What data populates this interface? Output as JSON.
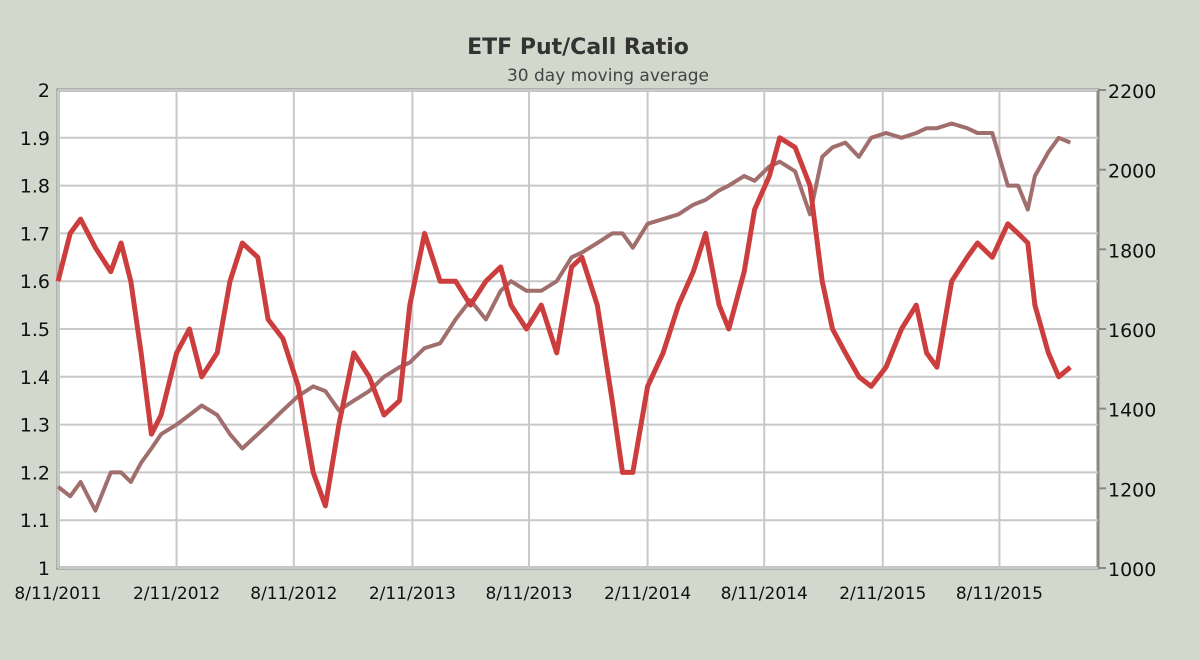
{
  "chart_data": {
    "type": "line",
    "title": "ETF Put/Call Ratio",
    "subtitle": "30 day moving  average",
    "xlabel": "",
    "ylabel": "",
    "y2label": "",
    "xlim": [
      "2011-08-11",
      "2016-01-11"
    ],
    "ylim": [
      1,
      2
    ],
    "y2lim": [
      1000,
      2200
    ],
    "grid": true,
    "legend": "none",
    "x_tick_labels": [
      "8/11/2011",
      "2/11/2012",
      "8/11/2012",
      "2/11/2013",
      "8/11/2013",
      "2/11/2014",
      "8/11/2014",
      "2/11/2015",
      "8/11/2015"
    ],
    "x_ticks": [
      "2011-08-11",
      "2012-02-11",
      "2012-08-11",
      "2013-02-11",
      "2013-08-11",
      "2014-02-11",
      "2014-08-11",
      "2015-02-11",
      "2015-08-11"
    ],
    "y_tick_labels": [
      "1",
      "1.1",
      "1.2",
      "1.3",
      "1.4",
      "1.5",
      "1.6",
      "1.7",
      "1.8",
      "1.9",
      "2"
    ],
    "y2_tick_labels": [
      "1000",
      "1200",
      "1400",
      "1600",
      "1800",
      "2000",
      "2200"
    ],
    "x": [
      "2011-08-11",
      "2011-08-30",
      "2011-09-15",
      "2011-10-08",
      "2011-11-01",
      "2011-11-17",
      "2011-12-02",
      "2011-12-18",
      "2012-01-03",
      "2012-01-18",
      "2012-02-11",
      "2012-03-02",
      "2012-03-21",
      "2012-04-14",
      "2012-05-04",
      "2012-05-23",
      "2012-06-16",
      "2012-07-02",
      "2012-07-25",
      "2012-08-18",
      "2012-09-10",
      "2012-09-29",
      "2012-10-20",
      "2012-11-12",
      "2012-12-06",
      "2012-12-29",
      "2013-01-22",
      "2013-02-07",
      "2013-03-02",
      "2013-03-26",
      "2013-04-19",
      "2013-05-12",
      "2013-06-05",
      "2013-06-28",
      "2013-07-14",
      "2013-08-07",
      "2013-08-30",
      "2013-09-23",
      "2013-10-16",
      "2013-11-01",
      "2013-11-25",
      "2013-12-18",
      "2014-01-03",
      "2014-01-19",
      "2014-02-11",
      "2014-03-07",
      "2014-03-31",
      "2014-04-23",
      "2014-05-12",
      "2014-06-02",
      "2014-06-17",
      "2014-07-11",
      "2014-07-27",
      "2014-08-19",
      "2014-09-04",
      "2014-09-28",
      "2014-10-21",
      "2014-11-09",
      "2014-11-25",
      "2014-12-15",
      "2015-01-05",
      "2015-01-24",
      "2015-02-16",
      "2015-03-12",
      "2015-04-04",
      "2015-04-20",
      "2015-05-06",
      "2015-05-29",
      "2015-06-22",
      "2015-07-08",
      "2015-07-31",
      "2015-08-24",
      "2015-09-09",
      "2015-09-24",
      "2015-10-05",
      "2015-10-26",
      "2015-11-11",
      "2015-11-29"
    ],
    "series": [
      {
        "axis": "left",
        "color": "#cc3e3e",
        "values": [
          1.6,
          1.7,
          1.73,
          1.67,
          1.62,
          1.68,
          1.6,
          1.45,
          1.28,
          1.32,
          1.45,
          1.5,
          1.4,
          1.45,
          1.6,
          1.68,
          1.65,
          1.52,
          1.48,
          1.38,
          1.2,
          1.13,
          1.3,
          1.45,
          1.4,
          1.32,
          1.35,
          1.55,
          1.7,
          1.6,
          1.6,
          1.55,
          1.6,
          1.63,
          1.55,
          1.5,
          1.55,
          1.45,
          1.63,
          1.65,
          1.55,
          1.35,
          1.2,
          1.2,
          1.38,
          1.45,
          1.55,
          1.62,
          1.7,
          1.55,
          1.5,
          1.62,
          1.75,
          1.82,
          1.9,
          1.88,
          1.8,
          1.6,
          1.5,
          1.45,
          1.4,
          1.38,
          1.42,
          1.5,
          1.55,
          1.45,
          1.42,
          1.6,
          1.65,
          1.68,
          1.65,
          1.72,
          1.7,
          1.68,
          1.55,
          1.45,
          1.4,
          1.42
        ]
      },
      {
        "axis": "right",
        "color": "#a06e6c",
        "values": [
          1204,
          1180,
          1216,
          1144,
          1240,
          1240,
          1216,
          1264,
          1300,
          1336,
          1360,
          1384,
          1408,
          1384,
          1336,
          1300,
          1336,
          1360,
          1396,
          1432,
          1456,
          1444,
          1396,
          1420,
          1444,
          1480,
          1504,
          1516,
          1552,
          1564,
          1624,
          1672,
          1624,
          1696,
          1720,
          1696,
          1696,
          1720,
          1780,
          1792,
          1816,
          1840,
          1840,
          1804,
          1864,
          1876,
          1888,
          1912,
          1924,
          1948,
          1960,
          1984,
          1972,
          2008,
          2020,
          1996,
          1888,
          2032,
          2056,
          2068,
          2032,
          2080,
          2092,
          2080,
          2092,
          2104,
          2104,
          2116,
          2104,
          2092,
          2092,
          1960,
          1960,
          1900,
          1984,
          2044,
          2080,
          2068
        ]
      }
    ]
  }
}
